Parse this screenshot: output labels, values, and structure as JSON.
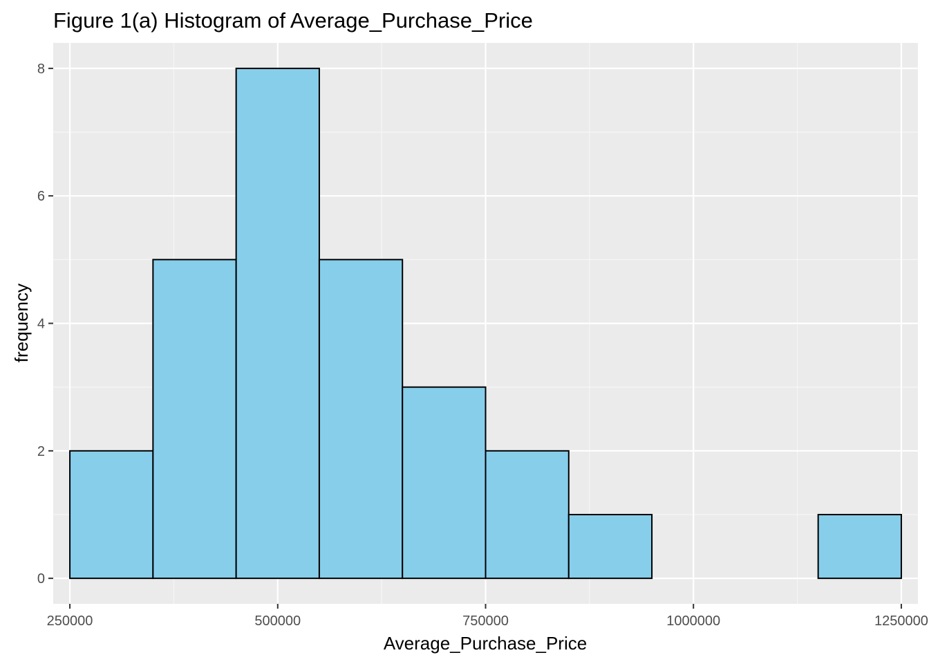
{
  "chart_data": {
    "type": "bar",
    "title": "Figure 1(a) Histogram of Average_Purchase_Price",
    "xlabel": "Average_Purchase_Price",
    "ylabel": "frequency",
    "bin_width": 100000,
    "bins": [
      {
        "start": 250000,
        "end": 350000,
        "count": 2
      },
      {
        "start": 350000,
        "end": 450000,
        "count": 5
      },
      {
        "start": 450000,
        "end": 550000,
        "count": 8
      },
      {
        "start": 550000,
        "end": 650000,
        "count": 5
      },
      {
        "start": 650000,
        "end": 750000,
        "count": 3
      },
      {
        "start": 750000,
        "end": 850000,
        "count": 2
      },
      {
        "start": 850000,
        "end": 950000,
        "count": 1
      },
      {
        "start": 950000,
        "end": 1050000,
        "count": 0
      },
      {
        "start": 1050000,
        "end": 1150000,
        "count": 0
      },
      {
        "start": 1150000,
        "end": 1250000,
        "count": 1
      }
    ],
    "xlim": [
      230000,
      1270000
    ],
    "ylim": [
      -0.4,
      8.4
    ],
    "x_ticks": [
      250000,
      500000,
      750000,
      1000000,
      1250000
    ],
    "x_tick_labels": [
      "250000",
      "500000",
      "750000",
      "1000000",
      "1250000"
    ],
    "x_minor_ticks": [
      375000,
      625000,
      875000,
      1125000
    ],
    "y_ticks": [
      0,
      2,
      4,
      6,
      8
    ],
    "y_tick_labels": [
      "0",
      "2",
      "4",
      "6",
      "8"
    ],
    "y_minor_ticks": [
      1,
      3,
      5,
      7
    ],
    "grid": true,
    "legend": "none",
    "colors": {
      "bar_fill": "#87ceeb",
      "bar_outline": "#000000",
      "panel_background": "#ebebeb",
      "grid_major": "#ffffff",
      "grid_minor": "#f7f7f7",
      "tick_label": "#4d4d4d",
      "axis_tick": "#333333"
    }
  }
}
